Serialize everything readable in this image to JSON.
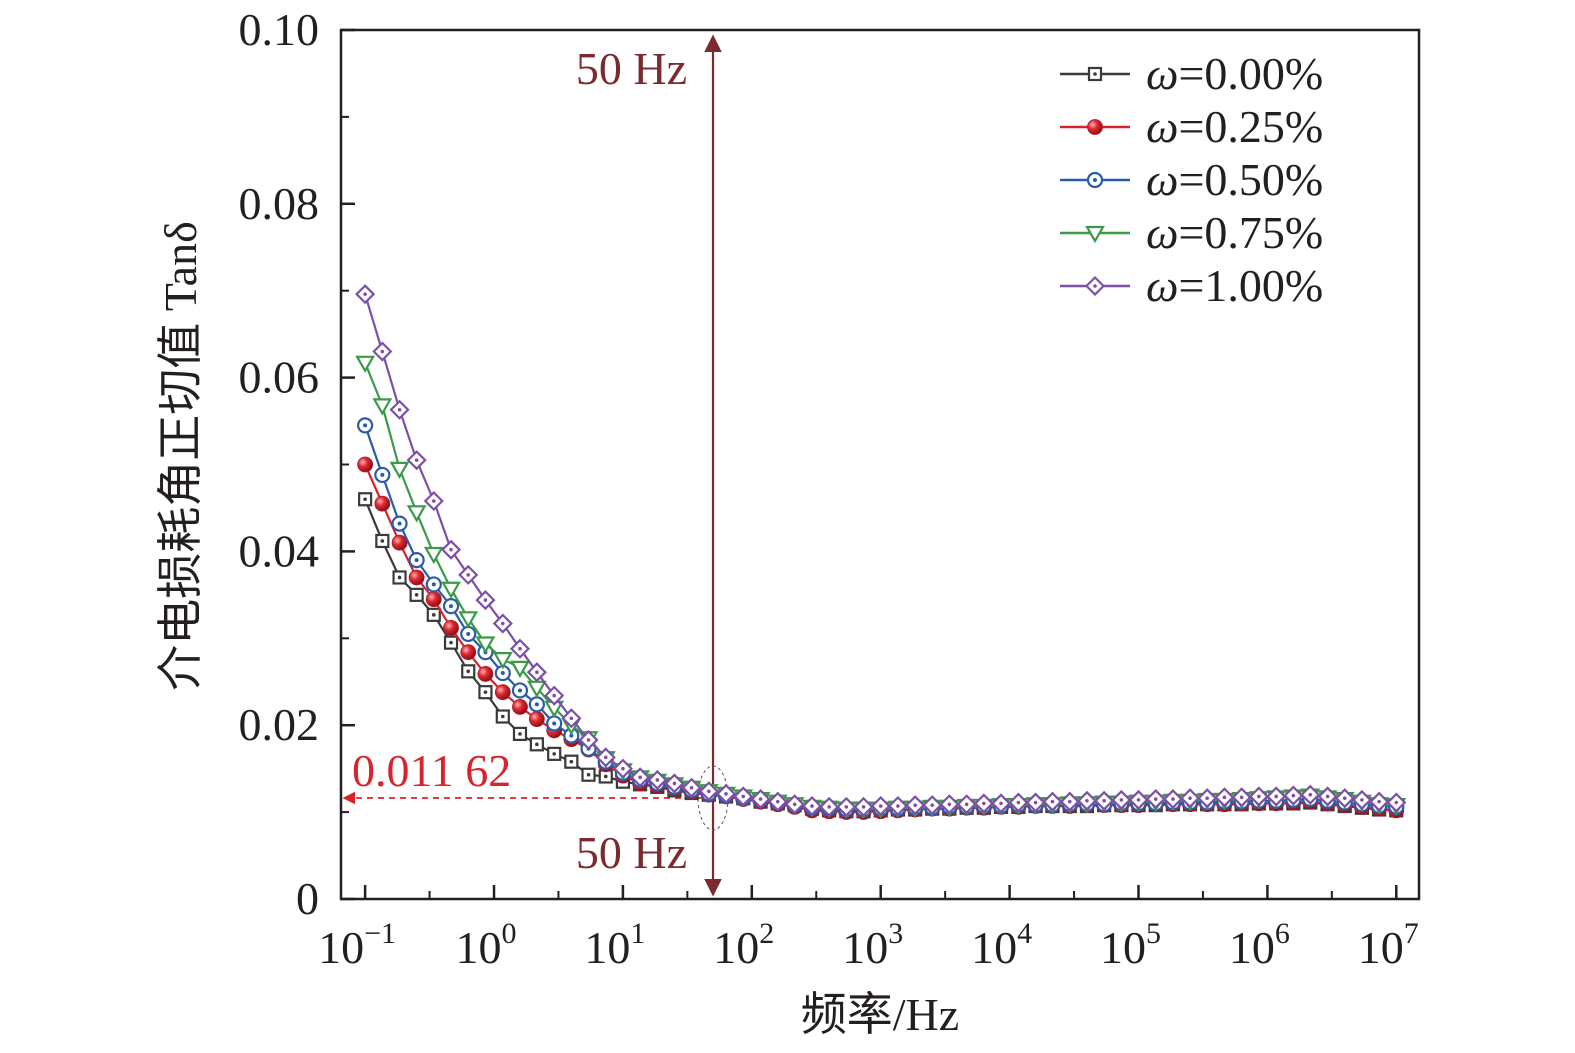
{
  "chart_data": {
    "type": "line",
    "xlabel": "频率/Hz",
    "ylabel": "介电损耗角正切值 Tanδ",
    "xscale": "log",
    "xlim": [
      0.065,
      15000000
    ],
    "ylim": [
      0,
      0.1
    ],
    "x_ticks": [
      {
        "value": 0.1,
        "base": "10",
        "exp": "−1"
      },
      {
        "value": 1,
        "base": "10",
        "exp": "0"
      },
      {
        "value": 10,
        "base": "10",
        "exp": "1"
      },
      {
        "value": 100,
        "base": "10",
        "exp": "2"
      },
      {
        "value": 1000,
        "base": "10",
        "exp": "3"
      },
      {
        "value": 10000,
        "base": "10",
        "exp": "4"
      },
      {
        "value": 100000,
        "base": "10",
        "exp": "5"
      },
      {
        "value": 1000000,
        "base": "10",
        "exp": "6"
      },
      {
        "value": 10000000,
        "base": "10",
        "exp": "7"
      }
    ],
    "y_ticks": [
      {
        "value": 0,
        "label": "0"
      },
      {
        "value": 0.02,
        "label": "0.02"
      },
      {
        "value": 0.04,
        "label": "0.04"
      },
      {
        "value": 0.06,
        "label": "0.06"
      },
      {
        "value": 0.08,
        "label": "0.08"
      },
      {
        "value": 0.1,
        "label": "0.10"
      }
    ],
    "legend_position": "top-right",
    "x": [
      0.1,
      0.136,
      0.185,
      0.251,
      0.341,
      0.464,
      0.631,
      0.858,
      1.17,
      1.59,
      2.15,
      2.93,
      3.98,
      5.41,
      7.36,
      10,
      13.6,
      18.5,
      25.1,
      34.1,
      46.4,
      63.1,
      85.8,
      117,
      159,
      215,
      293,
      398,
      541,
      736,
      1000,
      1360,
      1850,
      2510,
      3410,
      4640,
      6310,
      8580,
      11700,
      15900,
      21500,
      29300,
      39800,
      54100,
      73600,
      100000,
      136000,
      185000,
      251000,
      341000,
      464000,
      631000,
      858000,
      1170000,
      1590000,
      2150000,
      2930000,
      3980000,
      5410000,
      7360000,
      10000000
    ],
    "series": [
      {
        "name": "ω=0.00%",
        "color": "#3a3a3a",
        "marker": "square-dot",
        "values": [
          0.046,
          0.0412,
          0.037,
          0.035,
          0.0327,
          0.0295,
          0.0262,
          0.0238,
          0.021,
          0.019,
          0.0178,
          0.0167,
          0.0158,
          0.0143,
          0.0141,
          0.0135,
          0.0132,
          0.0129,
          0.0125,
          0.0122,
          0.012,
          0.0118,
          0.0116,
          0.0112,
          0.011,
          0.0108,
          0.0104,
          0.0102,
          0.0101,
          0.0101,
          0.0102,
          0.0103,
          0.0103,
          0.0104,
          0.0104,
          0.0105,
          0.0105,
          0.0106,
          0.0106,
          0.0107,
          0.0107,
          0.0107,
          0.0107,
          0.0108,
          0.0108,
          0.0108,
          0.0108,
          0.0109,
          0.0109,
          0.0109,
          0.0109,
          0.0109,
          0.011,
          0.011,
          0.011,
          0.0111,
          0.0109,
          0.0107,
          0.0105,
          0.0103,
          0.0102
        ]
      },
      {
        "name": "ω=0.25%",
        "color": "#d7242c",
        "marker": "sphere",
        "values": [
          0.05,
          0.0455,
          0.041,
          0.037,
          0.0345,
          0.0312,
          0.0284,
          0.0259,
          0.0238,
          0.0221,
          0.0207,
          0.0194,
          0.0184,
          0.0172,
          0.0155,
          0.0142,
          0.0133,
          0.013,
          0.0127,
          0.0123,
          0.012,
          0.0118,
          0.0115,
          0.0112,
          0.0109,
          0.0106,
          0.0102,
          0.0101,
          0.01,
          0.01,
          0.0101,
          0.0102,
          0.0103,
          0.0104,
          0.0104,
          0.0105,
          0.0105,
          0.0106,
          0.0106,
          0.0107,
          0.0107,
          0.0107,
          0.0108,
          0.0108,
          0.0108,
          0.0108,
          0.0109,
          0.0109,
          0.0109,
          0.0109,
          0.0109,
          0.011,
          0.011,
          0.011,
          0.0111,
          0.0112,
          0.011,
          0.0108,
          0.0106,
          0.0104,
          0.0102
        ]
      },
      {
        "name": "ω=0.50%",
        "color": "#2a5ba8",
        "marker": "circle-dot",
        "values": [
          0.0545,
          0.0488,
          0.0432,
          0.039,
          0.0362,
          0.0337,
          0.0305,
          0.0284,
          0.026,
          0.024,
          0.0224,
          0.0202,
          0.0188,
          0.0173,
          0.0158,
          0.0145,
          0.0137,
          0.0133,
          0.0129,
          0.0125,
          0.0121,
          0.0119,
          0.0116,
          0.0114,
          0.0111,
          0.0108,
          0.0105,
          0.0104,
          0.0103,
          0.0103,
          0.0104,
          0.0104,
          0.0105,
          0.0105,
          0.0106,
          0.0106,
          0.0107,
          0.0107,
          0.0108,
          0.0108,
          0.0108,
          0.0109,
          0.0109,
          0.0109,
          0.011,
          0.011,
          0.011,
          0.0111,
          0.0111,
          0.0111,
          0.0112,
          0.0112,
          0.0113,
          0.0113,
          0.0114,
          0.0115,
          0.0113,
          0.0111,
          0.0109,
          0.0107,
          0.0106
        ]
      },
      {
        "name": "ω=0.75%",
        "color": "#3b9a48",
        "marker": "triangle-down",
        "values": [
          0.0617,
          0.0568,
          0.0495,
          0.0445,
          0.0397,
          0.0357,
          0.0323,
          0.0294,
          0.0276,
          0.0266,
          0.0243,
          0.022,
          0.02,
          0.0185,
          0.0162,
          0.0148,
          0.014,
          0.0136,
          0.0132,
          0.0128,
          0.0124,
          0.0121,
          0.0118,
          0.0115,
          0.0112,
          0.0109,
          0.0106,
          0.0105,
          0.0104,
          0.0104,
          0.0104,
          0.0105,
          0.0105,
          0.0106,
          0.0106,
          0.0107,
          0.0107,
          0.0108,
          0.0108,
          0.0109,
          0.0109,
          0.011,
          0.011,
          0.0111,
          0.0111,
          0.0112,
          0.0112,
          0.0113,
          0.0113,
          0.0114,
          0.0114,
          0.0115,
          0.0116,
          0.0117,
          0.0118,
          0.0119,
          0.0117,
          0.0115,
          0.0112,
          0.0109,
          0.0108
        ]
      },
      {
        "name": "ω=1.00%",
        "color": "#7d4fa6",
        "marker": "diamond-dot",
        "values": [
          0.0696,
          0.063,
          0.0563,
          0.0505,
          0.0458,
          0.0402,
          0.0373,
          0.0344,
          0.0317,
          0.0288,
          0.0261,
          0.0234,
          0.0208,
          0.0183,
          0.0163,
          0.015,
          0.014,
          0.0137,
          0.0133,
          0.0128,
          0.0124,
          0.0121,
          0.0118,
          0.0115,
          0.0112,
          0.0109,
          0.0107,
          0.0106,
          0.0106,
          0.0106,
          0.0107,
          0.0107,
          0.0108,
          0.0108,
          0.0109,
          0.0109,
          0.011,
          0.011,
          0.0111,
          0.0111,
          0.0112,
          0.0112,
          0.0113,
          0.0113,
          0.0114,
          0.0114,
          0.0115,
          0.0115,
          0.0116,
          0.0116,
          0.0117,
          0.0117,
          0.0118,
          0.0118,
          0.0119,
          0.012,
          0.0118,
          0.0116,
          0.0114,
          0.0112,
          0.0111
        ]
      }
    ],
    "annotations": {
      "marker_freq": 50,
      "freq_top_label": "50 Hz",
      "freq_bottom_label": "50 Hz",
      "freq_color": "#7b2a2e",
      "value": 0.01162,
      "value_label": "0.011 62",
      "value_color": "#d7242c"
    }
  }
}
